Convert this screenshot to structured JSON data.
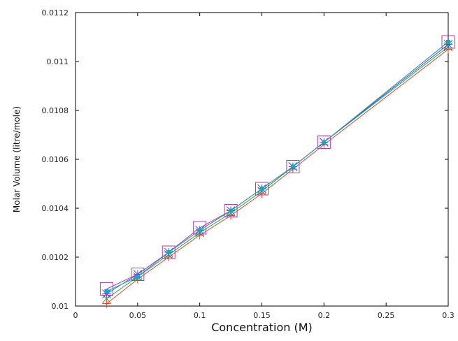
{
  "chart_data": {
    "type": "line",
    "title": "",
    "xlabel": "Concentration (M)",
    "ylabel": "Molar Volume (litre/mole)",
    "xlim": [
      0,
      0.3
    ],
    "ylim": [
      0.01,
      0.0112
    ],
    "x_ticks": [
      "0",
      "0.05",
      "0.1",
      "0.15",
      "0.2",
      "0.25",
      "0.3"
    ],
    "y_ticks": [
      "0.01",
      "0.0102",
      "0.0104",
      "0.0106",
      "0.0108",
      "0.011",
      "0.0112"
    ],
    "grid": false,
    "legend": "none",
    "x": [
      0.025,
      0.05,
      0.075,
      0.1,
      0.125,
      0.15,
      0.175,
      0.2,
      0.3
    ],
    "series": [
      {
        "color": "#e8412c",
        "marker": "plus",
        "values": [
          0.01001,
          0.01011,
          0.0102,
          0.01029,
          0.01037,
          0.01046,
          0.01056,
          0.01066,
          0.01105
        ]
      },
      {
        "color": "#2ca02c",
        "marker": "cross",
        "values": [
          0.01003,
          0.01012,
          0.01021,
          0.0103,
          0.01038,
          0.01047,
          0.01057,
          0.01067,
          0.01106
        ]
      },
      {
        "color": "#3b5bdb",
        "marker": "asterisk",
        "values": [
          0.01005,
          0.01013,
          0.01022,
          0.01031,
          0.01039,
          0.01048,
          0.01057,
          0.01067,
          0.01107
        ]
      },
      {
        "color": "#b03ab0",
        "marker": "square",
        "values": [
          0.01007,
          0.01013,
          0.01022,
          0.01032,
          0.01039,
          0.01048,
          0.01057,
          0.01067,
          0.01108
        ]
      },
      {
        "color": "#1aa3c6",
        "marker": "filled-square",
        "values": [
          0.01006,
          0.01012,
          0.01022,
          0.01031,
          0.01039,
          0.01048,
          0.01057,
          0.01067,
          0.01108
        ]
      }
    ]
  }
}
